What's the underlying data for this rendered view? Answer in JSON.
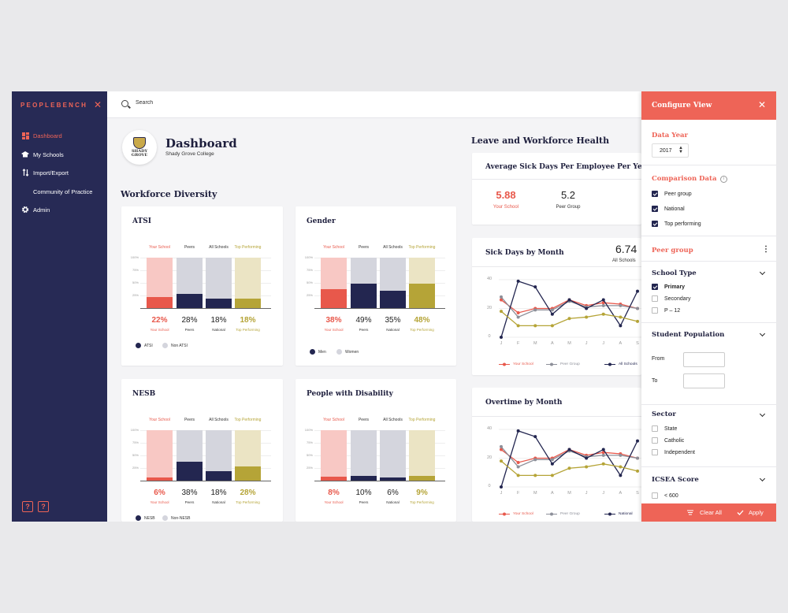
{
  "brand": "PEOPLEBENCH",
  "nav": [
    {
      "label": "Dashboard",
      "icon": "dashboard-icon",
      "active": true
    },
    {
      "label": "My Schools",
      "icon": "graduation-cap-icon"
    },
    {
      "label": "Import/Export",
      "icon": "sort-arrows-icon"
    },
    {
      "label": "Community of Practice",
      "icon": ""
    },
    {
      "label": "Admin",
      "icon": "gear-icon"
    }
  ],
  "help_labels": [
    "?",
    "?"
  ],
  "search": {
    "placeholder": "Search"
  },
  "header": {
    "title": "Dashboard",
    "subtitle": "Shady Grove College",
    "logo_text": [
      "SHADY",
      "GROVE"
    ]
  },
  "sections": {
    "diversity": "Workforce Diversity",
    "leave": "Leave and Workforce Health"
  },
  "bar_axis": [
    "100%",
    "75%",
    "50%",
    "25%"
  ],
  "column_headers": [
    "Your School",
    "Peers",
    "All Schools",
    "Top Performing"
  ],
  "diversity_cards": [
    {
      "title": "ATSI",
      "values": [
        22,
        28,
        18,
        18
      ],
      "display": [
        "22%",
        "28%",
        "18%",
        "18%"
      ],
      "labels": [
        "Your School",
        "Peers",
        "National",
        "Top Performing"
      ],
      "legend": [
        "ATSI",
        "Non ATSI"
      ]
    },
    {
      "title": "Gender",
      "values": [
        38,
        49,
        35,
        48
      ],
      "display": [
        "38%",
        "49%",
        "35%",
        "48%"
      ],
      "labels": [
        "Your School",
        "Peers",
        "National",
        "Top Performing"
      ],
      "legend": [
        "Men",
        "Women"
      ]
    },
    {
      "title": "NESB",
      "values": [
        6,
        38,
        18,
        28
      ],
      "display": [
        "6%",
        "38%",
        "18%",
        "28%"
      ],
      "labels": [
        "Your School",
        "Peers",
        "National",
        "Top Performing"
      ],
      "legend": [
        "NESB",
        "Non-NESB"
      ]
    },
    {
      "title": "People with Disability",
      "values": [
        8,
        10,
        6,
        9
      ],
      "display": [
        "8%",
        "10%",
        "6%",
        "9%"
      ],
      "labels": [
        "Your School",
        "Peers",
        "National",
        "Top Performing"
      ],
      "legend": []
    }
  ],
  "sick_days_card": {
    "title": "Average Sick Days Per Employee Per Year",
    "metrics": [
      {
        "value": "5.88",
        "label": "Your School"
      },
      {
        "value": "5.2",
        "label": "Peer Group"
      }
    ]
  },
  "line_charts": [
    {
      "title": "Sick Days by Month",
      "big_value": "6.74",
      "big_label": "All Schools",
      "y_ticks": [
        "40",
        "20",
        "0"
      ],
      "months": [
        "J",
        "F",
        "M",
        "A",
        "M",
        "J",
        "J",
        "A",
        "S"
      ],
      "legend": [
        "Your School",
        "Peer Group",
        "All Schools"
      ],
      "chart_data": {
        "type": "line",
        "x": [
          "J",
          "F",
          "M",
          "A",
          "M",
          "J",
          "J",
          "A",
          "S"
        ],
        "ylim": [
          0,
          40
        ],
        "series": [
          {
            "name": "Your School",
            "values": [
              26,
              17,
              20,
              20,
              26,
              22,
              24,
              23,
              20
            ]
          },
          {
            "name": "Peer Group",
            "values": [
              28,
              14,
              19,
              19,
              25,
              21,
              22,
              22,
              20
            ]
          },
          {
            "name": "All Schools",
            "values": [
              0,
              39,
              35,
              16,
              26,
              20,
              26,
              8,
              32
            ]
          },
          {
            "name": "",
            "values": [
              18,
              8,
              8,
              8,
              13,
              14,
              16,
              14,
              11
            ]
          }
        ]
      }
    },
    {
      "title": "Overtime by Month",
      "big_value": "",
      "big_label": "",
      "y_ticks": [
        "40",
        "20",
        "0"
      ],
      "months": [
        "J",
        "F",
        "M",
        "A",
        "M",
        "J",
        "J",
        "A",
        "S"
      ],
      "legend": [
        "Your School",
        "Peer Group",
        "National"
      ],
      "chart_data": {
        "type": "line",
        "x": [
          "J",
          "F",
          "M",
          "A",
          "M",
          "J",
          "J",
          "A",
          "S"
        ],
        "ylim": [
          0,
          40
        ],
        "series": [
          {
            "name": "Your School",
            "values": [
              26,
              17,
              20,
              20,
              26,
              22,
              24,
              23,
              20
            ]
          },
          {
            "name": "Peer Group",
            "values": [
              28,
              14,
              19,
              19,
              25,
              21,
              22,
              22,
              20
            ]
          },
          {
            "name": "National",
            "values": [
              0,
              39,
              35,
              16,
              26,
              20,
              26,
              8,
              32
            ]
          },
          {
            "name": "",
            "values": [
              18,
              8,
              8,
              8,
              13,
              14,
              16,
              14,
              11
            ]
          }
        ]
      }
    }
  ],
  "panel": {
    "title": "Configure View",
    "data_year_label": "Data Year",
    "data_year_value": "2017",
    "comparison_label": "Comparison Data",
    "comparison_options": [
      {
        "label": "Peer group",
        "checked": true
      },
      {
        "label": "National",
        "checked": true
      },
      {
        "label": "Top performing",
        "checked": true
      }
    ],
    "peer_group_label": "Peer group",
    "school_type_label": "School Type",
    "school_type_options": [
      {
        "label": "Primary",
        "checked": true
      },
      {
        "label": "Secondary",
        "checked": false
      },
      {
        "label": "P – 12",
        "checked": false
      }
    ],
    "student_population_label": "Student Population",
    "from_label": "From",
    "to_label": "To",
    "sector_label": "Sector",
    "sector_options": [
      {
        "label": "State",
        "checked": false
      },
      {
        "label": "Catholic",
        "checked": false
      },
      {
        "label": "Independent",
        "checked": false
      }
    ],
    "icsea_label": "ICSEA Score",
    "icsea_options": [
      {
        "label": "< 600",
        "checked": false
      }
    ],
    "clear_label": "Clear All",
    "apply_label": "Apply"
  },
  "colors": {
    "accent": "#ee6457",
    "sidebar": "#272a55",
    "navy": "#232650",
    "your_school_light": "#f8c8c4",
    "your_school": "#e8584b",
    "peers_light": "#d4d5dd",
    "gold_light": "#ebe4c4",
    "gold": "#b5a437",
    "gray_line": "#8d8f99"
  }
}
